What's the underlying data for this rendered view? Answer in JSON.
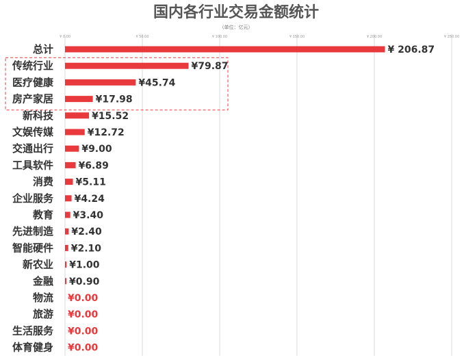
{
  "chart_data": {
    "type": "bar",
    "orientation": "horizontal",
    "title": "国内各行业交易金额统计",
    "subtitle": "（单位：亿元）",
    "xlim": [
      0,
      250
    ],
    "x_ticks": [
      "¥ 0.00",
      "¥ 50.00",
      "¥ 100.00",
      "¥ 150.00",
      "¥ 200.00",
      "¥ 250.00"
    ],
    "x_tick_values": [
      0,
      50,
      100,
      150,
      200,
      250
    ],
    "grid": true,
    "bar_color": "#e8393c",
    "zero_label_color": "#e8393c",
    "highlight_group": [
      "传统行业",
      "医疗健康",
      "房产家居"
    ],
    "categories": [
      "总计",
      "传统行业",
      "医疗健康",
      "房产家居",
      "新科技",
      "文娱传媒",
      "交通出行",
      "工具软件",
      "消费",
      "企业服务",
      "教育",
      "先进制造",
      "智能硬件",
      "新农业",
      "金融",
      "物流",
      "旅游",
      "生活服务",
      "体育健身"
    ],
    "values": [
      206.87,
      79.87,
      45.74,
      17.98,
      15.52,
      12.72,
      9.0,
      6.89,
      5.11,
      4.24,
      3.4,
      2.4,
      2.1,
      1.0,
      0.9,
      0.0,
      0.0,
      0.0,
      0.0
    ],
    "value_labels": [
      "¥ 206.87",
      "¥79.87",
      "¥45.74",
      "¥17.98",
      "¥15.52",
      "¥12.72",
      "¥9.00",
      "¥6.89",
      "¥5.11",
      "¥4.24",
      "¥3.40",
      "¥2.40",
      "¥2.10",
      "¥1.00",
      "¥0.90",
      "¥0.00",
      "¥0.00",
      "¥0.00",
      "¥0.00"
    ]
  }
}
